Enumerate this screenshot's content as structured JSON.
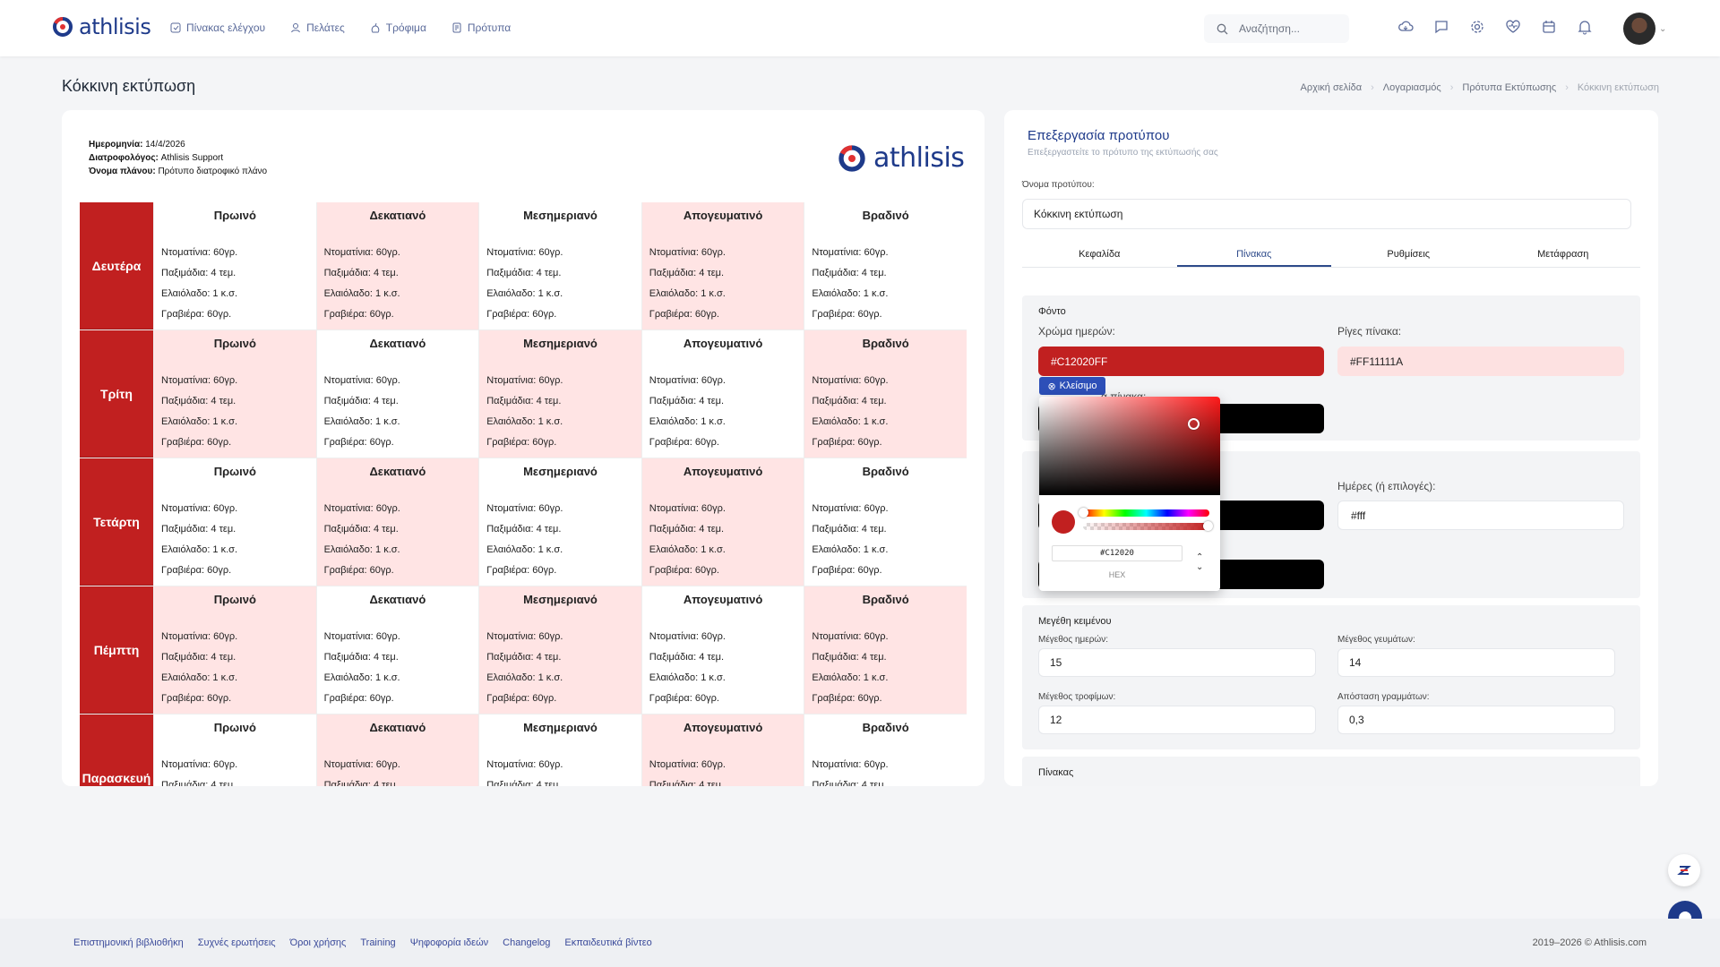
{
  "brand": {
    "name": "athlisis"
  },
  "nav": [
    {
      "label": "Πίνακας ελέγχου",
      "icon": "dashboard-icon"
    },
    {
      "label": "Πελάτες",
      "icon": "user-icon"
    },
    {
      "label": "Τρόφιμα",
      "icon": "food-icon"
    },
    {
      "label": "Πρότυπα",
      "icon": "template-icon"
    }
  ],
  "search": {
    "placeholder": "Αναζήτηση..."
  },
  "header_icons": [
    "cloud-icon",
    "chat-icon",
    "gear-icon",
    "heart-icon",
    "calendar-icon",
    "bell-icon"
  ],
  "page": {
    "title": "Κόκκινη εκτύπωση"
  },
  "breadcrumb": [
    "Αρχική σελίδα",
    "Λογαριασμός",
    "Πρότυπα Εκτύπωσης",
    "Κόκκινη εκτύπωση"
  ],
  "plan": {
    "date_label": "Ημερομηνία:",
    "date": "14/4/2026",
    "nutritionist_label": "Διατροφολόγος:",
    "nutritionist": "Athlisis Support",
    "plan_label": "Όνομα πλάνου:",
    "plan_name": "Πρότυπο διατροφικό πλάνο",
    "meals": [
      "Πρωινό",
      "Δεκατιανό",
      "Μεσημεριανό",
      "Απογευματινό",
      "Βραδινό"
    ],
    "days": [
      "Δευτέρα",
      "Τρίτη",
      "Τετάρτη",
      "Πέμπτη",
      "Παρασκευή"
    ],
    "foods": [
      "Ντοματίνια: 60γρ.",
      "Παξιμάδια: 4 τεμ.",
      "Ελαιόλαδο: 1 κ.σ.",
      "Γραβιέρα: 60γρ."
    ]
  },
  "editor": {
    "title": "Επεξεργασία προτύπου",
    "subtitle": "Επεξεργαστείτε το πρότυπο της εκτύπωσής σας",
    "template_name_label": "Όνομα προτύπου:",
    "template_name": "Κόκκινη εκτύπωση",
    "tabs": [
      "Κεφαλίδα",
      "Πίνακας",
      "Ρυθμίσεις",
      "Μετάφραση"
    ],
    "active_tab": "Πίνακας",
    "bg_section": "Φόντο",
    "day_color_label": "Χρώμα ημερών:",
    "day_color": "#C12020FF",
    "grid_lines_label": "Ρίγες πίνακα:",
    "grid_lines": "#FF11111A",
    "partial_label": "α πίνακα:",
    "days_optional_label": "Ημέρες (ή επιλογές):",
    "days_optional": "#fff",
    "sizes_section": "Μεγέθη κειμένου",
    "day_size_label": "Μέγεθος ημερών:",
    "day_size": "15",
    "meal_size_label": "Μέγεθος γευμάτων:",
    "meal_size": "14",
    "food_size_label": "Μέγεθος τροφίμων:",
    "food_size": "12",
    "line_spacing_label": "Απόσταση γραμμάτων:",
    "line_spacing": "0,3",
    "table_section": "Πίνακας",
    "close_label": "Κλείσιμο"
  },
  "picker": {
    "hex": "#C12020",
    "format": "HEX"
  },
  "colors": {
    "primary": "#1e3a8a",
    "day_red": "#c12020",
    "pink": "#ffe4e4"
  },
  "footer": {
    "links": [
      "Επιστημονική βιβλιοθήκη",
      "Συχνές ερωτήσεις",
      "Όροι χρήσης",
      "Training",
      "Ψηφοφορία ιδεών",
      "Changelog",
      "Εκπαιδευτικά βίντεο"
    ],
    "copyright": "2019–2026 © Athlisis.com"
  }
}
